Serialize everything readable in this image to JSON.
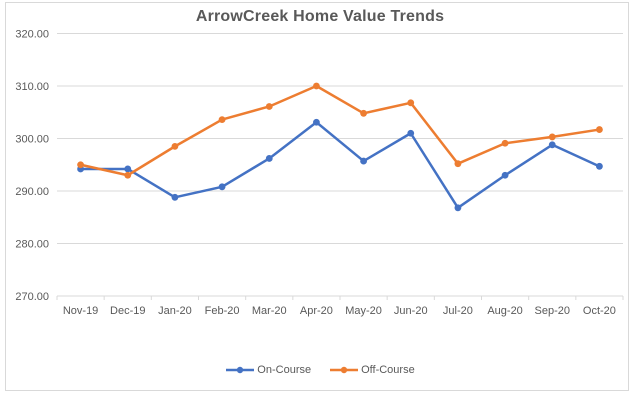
{
  "chart_data": {
    "type": "line",
    "title": "ArrowCreek Home Value Trends",
    "categories": [
      "Nov-19",
      "Dec-19",
      "Jan-20",
      "Feb-20",
      "Mar-20",
      "Apr-20",
      "May-20",
      "Jun-20",
      "Jul-20",
      "Aug-20",
      "Sep-20",
      "Oct-20"
    ],
    "series": [
      {
        "name": "On-Course",
        "color": "#4472C4",
        "values": [
          294.2,
          294.2,
          288.8,
          290.8,
          296.2,
          303.1,
          295.7,
          301.0,
          286.8,
          293.0,
          298.8,
          294.7
        ]
      },
      {
        "name": "Off-Course",
        "color": "#ED7D31",
        "values": [
          295.0,
          293.0,
          298.5,
          303.6,
          306.1,
          310.0,
          304.8,
          306.8,
          295.2,
          299.1,
          300.3,
          301.7
        ]
      }
    ],
    "ylim": [
      270,
      320
    ],
    "ytick_step": 10,
    "ytick_labels": [
      "270.00",
      "280.00",
      "290.00",
      "300.00",
      "310.00",
      "320.00"
    ],
    "grid": true,
    "legend_position": "bottom",
    "colors": {
      "grid_line": "#d9d9d9",
      "axis_line": "#d9d9d9",
      "label_text": "#595959",
      "title_text": "#595959",
      "border": "#d9d9d9"
    }
  }
}
